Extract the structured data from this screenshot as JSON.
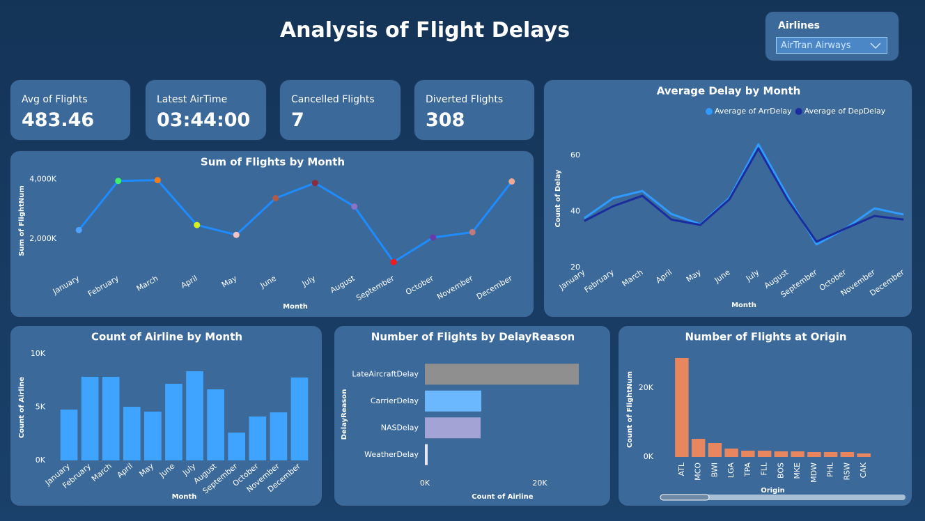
{
  "title": "Analysis of Flight Delays",
  "slicer": {
    "label": "Airlines",
    "value": "AirTran Airways"
  },
  "cards": [
    {
      "label": "Avg of Flights",
      "value": 483.46
    },
    {
      "label": "Latest AirTime",
      "value": "03:44:00"
    },
    {
      "label": "Cancelled Flights",
      "value": 7
    },
    {
      "label": "Diverted Flights",
      "value": 308
    }
  ],
  "chart_data": [
    {
      "type": "line",
      "title": "Sum of Flights by Month",
      "x_label": "Month",
      "y_label": "Sum of FlightNum",
      "categories": [
        "January",
        "February",
        "March",
        "April",
        "May",
        "June",
        "July",
        "August",
        "September",
        "October",
        "November",
        "December"
      ],
      "values": [
        2300000,
        3950000,
        3975000,
        2470000,
        2140000,
        3370000,
        3880000,
        3090000,
        1230000,
        2050000,
        2230000,
        3930000
      ],
      "color": "#1e8cff",
      "point_colors": [
        "#4da3ff",
        "#3ef06a",
        "#f07d1a",
        "#d6f21a",
        "#f3c1c1",
        "#b05a4a",
        "#8e2a3a",
        "#8a72c8",
        "#f21a1a",
        "#6a3aa8",
        "#c07a7a",
        "#f0a896"
      ],
      "ylim": [
        1000000,
        4200000
      ],
      "yticks": [
        {
          "value": 2000000,
          "label": "2,000K"
        },
        {
          "value": 4000000,
          "label": "4,000K"
        }
      ]
    },
    {
      "type": "line",
      "title": "Average Delay by Month",
      "x_label": "Month",
      "y_label": "Count of Delay",
      "categories": [
        "January",
        "February",
        "March",
        "April",
        "May",
        "June",
        "July",
        "August",
        "September",
        "October",
        "November",
        "December"
      ],
      "series": [
        {
          "name": "Average of ArrDelay",
          "color": "#2f9bff",
          "values": [
            37.6,
            44.8,
            47.3,
            39.1,
            35.4,
            44.8,
            64.0,
            45.6,
            28.2,
            33.9,
            41.1,
            38.9
          ]
        },
        {
          "name": "Average of DepDelay",
          "color": "#1a2d9e",
          "values": [
            36.6,
            41.9,
            45.6,
            37.1,
            35.2,
            44.3,
            62.5,
            44.3,
            29.2,
            33.9,
            38.4,
            37.1
          ]
        }
      ],
      "legend": "top-right",
      "ylim": [
        20,
        67
      ],
      "yticks": [
        20,
        40,
        60
      ]
    },
    {
      "type": "bar",
      "title": "Count of Airline by Month",
      "x_label": "Month",
      "y_label": "Count of Airline",
      "categories": [
        "January",
        "February",
        "March",
        "April",
        "May",
        "June",
        "July",
        "August",
        "September",
        "October",
        "November",
        "December"
      ],
      "values": [
        4770,
        7840,
        7840,
        5030,
        4580,
        7190,
        8370,
        6670,
        2610,
        4120,
        4510,
        7780
      ],
      "color": "#3fa4ff",
      "ylim": [
        0,
        10000
      ],
      "yticks": [
        {
          "value": 0,
          "label": "0K"
        },
        {
          "value": 5000,
          "label": "5K"
        },
        {
          "value": 10000,
          "label": "10K"
        }
      ]
    },
    {
      "type": "bar",
      "horizontal": true,
      "title": "Number of Flights by DelayReason",
      "x_label": "Count of Airline",
      "y_label": "DelayReason",
      "categories": [
        "LateAircraftDelay",
        "CarrierDelay",
        "NASDelay",
        "WeatherDelay"
      ],
      "values": [
        26790,
        9820,
        9700,
        480
      ],
      "colors": [
        "#8f8f8f",
        "#6cb8ff",
        "#a3a3d6",
        "#e8e8f5"
      ],
      "xlim": [
        0,
        27000
      ],
      "xticks": [
        {
          "value": 0,
          "label": "0K"
        },
        {
          "value": 20000,
          "label": "20K"
        }
      ]
    },
    {
      "type": "bar",
      "title": "Number of Flights at Origin",
      "x_label": "Origin",
      "y_label": "Count of FlightNum",
      "categories": [
        "ATL",
        "MCO",
        "BWI",
        "LGA",
        "TPA",
        "FLL",
        "BOS",
        "MKE",
        "MDW",
        "PHL",
        "RSW",
        "CAK"
      ],
      "values": [
        28690,
        5250,
        4040,
        2420,
        1820,
        1820,
        1620,
        1620,
        1410,
        1410,
        1410,
        1010
      ],
      "color": "#e8875f",
      "ylim": [
        0,
        30000
      ],
      "yticks": [
        {
          "value": 0,
          "label": "0K"
        },
        {
          "value": 20000,
          "label": "20K"
        }
      ]
    }
  ]
}
